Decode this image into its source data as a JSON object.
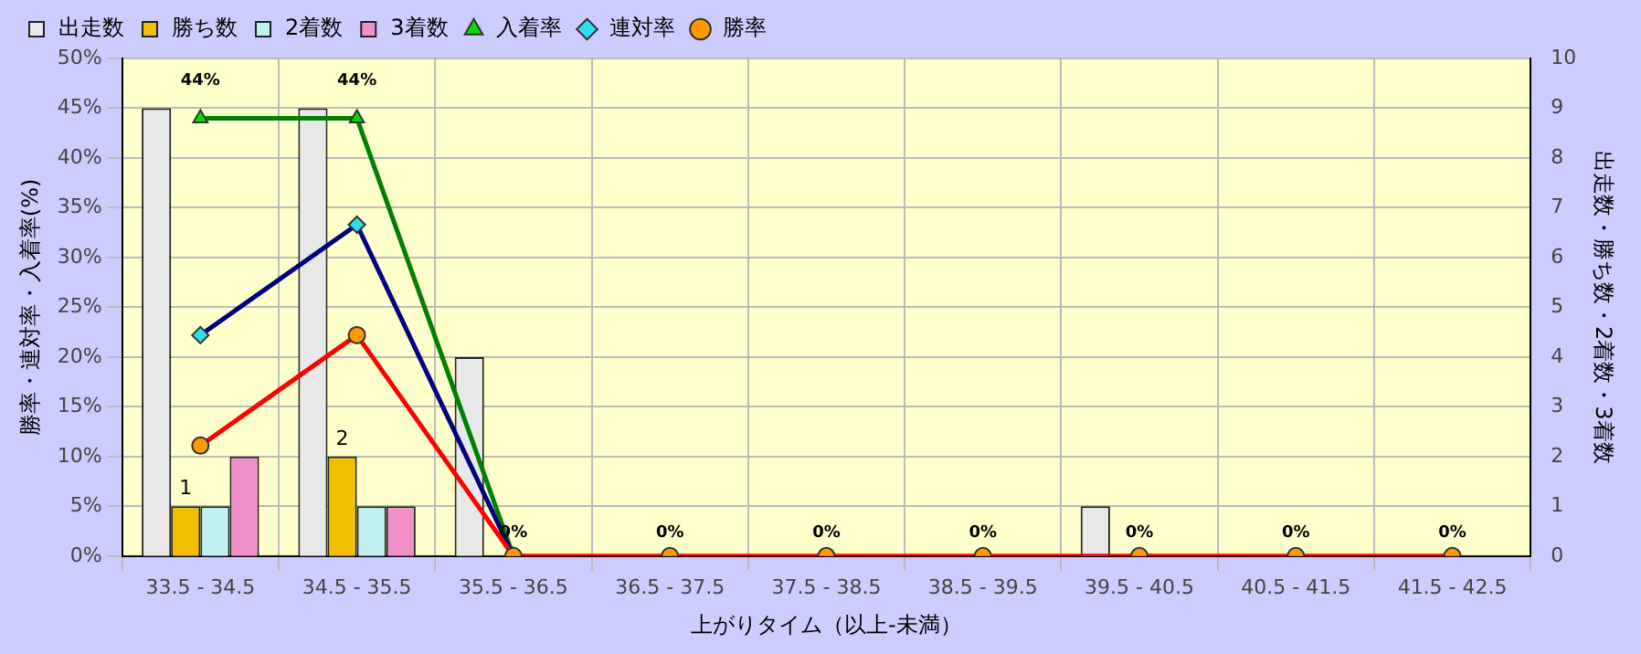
{
  "chart_data": {
    "type": "bar",
    "xlabel": "上がりタイム（以上-未満）",
    "ylabel": "勝率・連対率・入着率(%)",
    "y2label": "出走数・勝ち数・2着数・3着数",
    "categories": [
      "33.5 - 34.5",
      "34.5 - 35.5",
      "35.5 - 36.5",
      "36.5 - 37.5",
      "37.5 - 38.5",
      "38.5 - 39.5",
      "39.5 - 40.5",
      "40.5 - 41.5",
      "41.5 - 42.5"
    ],
    "series": [
      {
        "name": "出走数",
        "axis": "y2",
        "color": "#e8e8e8",
        "values": [
          9,
          9,
          4,
          0,
          0,
          0,
          1,
          0,
          0
        ]
      },
      {
        "name": "勝ち数",
        "axis": "y2",
        "color": "#f0c000",
        "values": [
          1,
          2,
          0,
          0,
          0,
          0,
          0,
          0,
          0
        ],
        "value_labels": [
          "1",
          "2",
          null,
          null,
          null,
          null,
          null,
          null,
          null
        ]
      },
      {
        "name": "2着数",
        "axis": "y2",
        "color": "#c0f0f0",
        "values": [
          1,
          1,
          0,
          0,
          0,
          0,
          0,
          0,
          0
        ]
      },
      {
        "name": "3着数",
        "axis": "y2",
        "color": "#f090c8",
        "values": [
          2,
          1,
          0,
          0,
          0,
          0,
          0,
          0,
          0
        ]
      },
      {
        "name": "入着率",
        "type": "line",
        "color": "#008000",
        "marker": "triangle",
        "values": [
          44,
          44,
          0,
          null,
          null,
          null,
          null,
          null,
          null
        ],
        "value_labels": [
          "44%",
          "44%",
          null,
          null,
          null,
          null,
          null,
          null,
          null
        ]
      },
      {
        "name": "連対率",
        "type": "line",
        "color": "#000080",
        "marker": "diamond",
        "values": [
          22.2,
          33.3,
          0,
          null,
          null,
          null,
          null,
          null,
          null
        ]
      },
      {
        "name": "勝率",
        "type": "line",
        "color": "#ff0000",
        "marker": "circle",
        "values": [
          11.1,
          22.2,
          0,
          0,
          0,
          0,
          0,
          0,
          0
        ],
        "value_labels": [
          null,
          null,
          "0%",
          "0%",
          "0%",
          "0%",
          "0%",
          "0%",
          "0%"
        ]
      }
    ],
    "ylim": [
      0,
      50
    ],
    "yticks": [
      {
        "value": 0,
        "label": "0%"
      },
      {
        "value": 5,
        "label": "5%"
      },
      {
        "value": 10,
        "label": "10%"
      },
      {
        "value": 15,
        "label": "15%"
      },
      {
        "value": 20,
        "label": "20%"
      },
      {
        "value": 25,
        "label": "25%"
      },
      {
        "value": 30,
        "label": "30%"
      },
      {
        "value": 35,
        "label": "35%"
      },
      {
        "value": 40,
        "label": "40%"
      },
      {
        "value": 45,
        "label": "45%"
      },
      {
        "value": 50,
        "label": "50%"
      }
    ],
    "y2lim": [
      0,
      10
    ],
    "y2ticks": [
      0,
      1,
      2,
      3,
      4,
      5,
      6,
      7,
      8,
      9,
      10
    ],
    "grid": true,
    "legend": "top left"
  }
}
